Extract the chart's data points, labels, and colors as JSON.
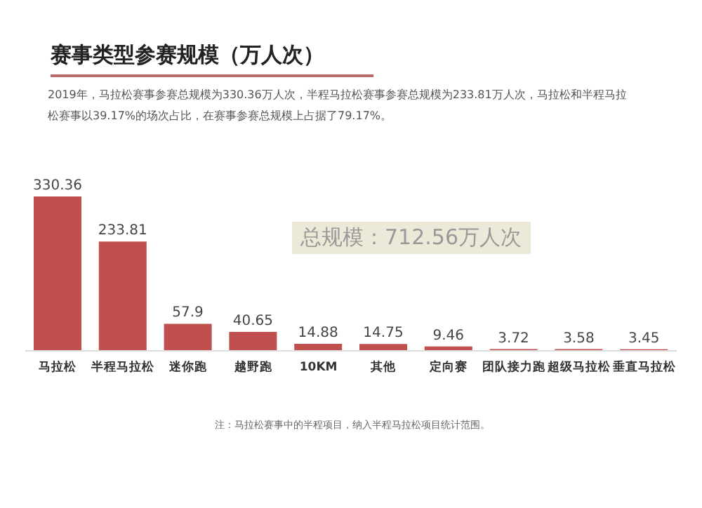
{
  "chart_data": {
    "type": "bar",
    "title": "赛事类型参赛规模（万人次）",
    "subtitle": "2019年，马拉松赛事参赛总规模为330.36万人次，半程马拉松赛事参赛总规模为233.81万人次，马拉松和半程马拉松赛事以39.17%的场次占比，在赛事参赛总规模上占据了79.17%。",
    "categories": [
      "马拉松",
      "半程马拉松",
      "迷你跑",
      "越野跑",
      "10KM",
      "其他",
      "定向赛",
      "团队接力跑",
      "超级马拉松",
      "垂直马拉松"
    ],
    "values": [
      330.36,
      233.81,
      57.9,
      40.65,
      14.88,
      14.75,
      9.46,
      3.72,
      3.58,
      3.45
    ],
    "color": "#c0504d",
    "data_labels": true,
    "annotations": [
      "总规模：712.56万人次",
      "注：马拉松赛事中的半程项目，纳入半程马拉松项目统计范围。"
    ]
  }
}
